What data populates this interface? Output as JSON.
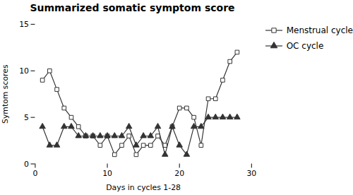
{
  "chart_data": {
    "type": "line",
    "title": "Summarized somatic symptom score",
    "xlabel": "Days in cycles 1-28",
    "ylabel": "Symtom scores",
    "x": [
      1,
      2,
      3,
      4,
      5,
      6,
      7,
      8,
      9,
      10,
      11,
      12,
      13,
      14,
      15,
      16,
      17,
      18,
      19,
      20,
      21,
      22,
      23,
      24,
      25,
      26,
      27,
      28
    ],
    "series": [
      {
        "name": "Menstrual cycle",
        "color": "#333333",
        "marker": "square-open",
        "line_style": "solid",
        "values": [
          9,
          10,
          8,
          6,
          5,
          4,
          3,
          3,
          2,
          3,
          1,
          2,
          3,
          1,
          2,
          2,
          3,
          2,
          4,
          6,
          6,
          5,
          2,
          7,
          7,
          9,
          11,
          12
        ]
      },
      {
        "name": "OC cycle",
        "color": "#333333",
        "marker": "triangle",
        "line_style": "solid",
        "values": [
          4,
          2,
          2,
          4,
          4,
          3,
          3,
          3,
          3,
          3,
          3,
          3,
          4,
          2,
          3,
          3,
          4,
          1,
          4,
          2,
          1,
          4,
          4,
          5,
          5,
          5,
          5,
          5
        ]
      }
    ],
    "xlim": [
      0,
      30
    ],
    "ylim": [
      0,
      15
    ],
    "xticks": [
      0,
      10,
      20,
      30
    ],
    "yticks": [
      0,
      5,
      10,
      15
    ],
    "grid": false,
    "legend": "right"
  }
}
